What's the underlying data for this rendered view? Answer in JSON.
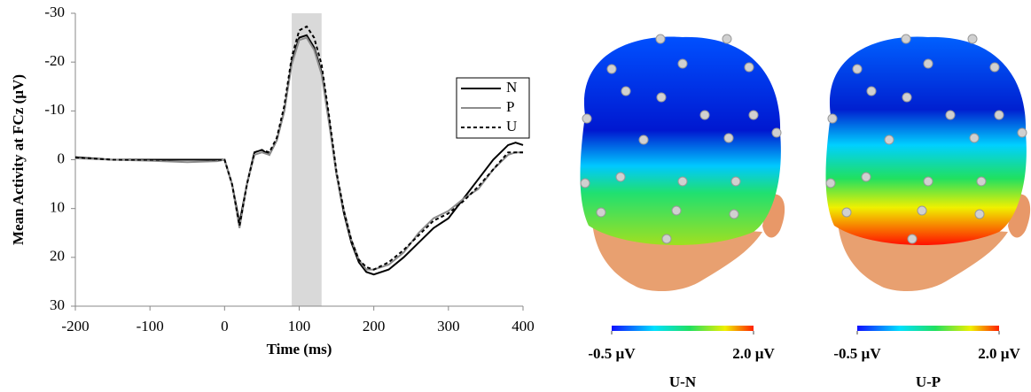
{
  "chart_data": [
    {
      "type": "line",
      "xlabel": "Time (ms)",
      "ylabel": "Mean Activity at FCz (µV)",
      "x": [
        -200,
        -150,
        -100,
        -50,
        -10,
        0,
        10,
        20,
        30,
        40,
        50,
        60,
        70,
        80,
        90,
        100,
        110,
        120,
        130,
        140,
        150,
        160,
        170,
        180,
        190,
        200,
        220,
        240,
        260,
        280,
        300,
        320,
        340,
        360,
        380,
        390,
        400
      ],
      "series": [
        {
          "name": "N",
          "color": "#000000",
          "dashed": false,
          "values": [
            -0.5,
            0,
            0,
            0,
            0,
            0,
            5,
            13,
            5,
            -1.5,
            -2,
            -1,
            -4,
            -10,
            -20,
            -25,
            -25.5,
            -23,
            -18,
            -8,
            3,
            11,
            17,
            21,
            23,
            23.5,
            22.5,
            20,
            17,
            14,
            12,
            8,
            4,
            0,
            -3,
            -3.5,
            -3
          ]
        },
        {
          "name": "P",
          "color": "#8c8c8c",
          "dashed": false,
          "values": [
            -0.3,
            0,
            0.2,
            0.5,
            0.3,
            0,
            5,
            14,
            5,
            -1,
            -1.5,
            -1,
            -4,
            -10,
            -19.5,
            -24.5,
            -25,
            -22.5,
            -17.5,
            -7.5,
            3,
            10.5,
            16.5,
            20.5,
            22.5,
            22.5,
            21.5,
            19,
            15,
            12,
            10.5,
            8,
            6,
            2,
            -1,
            -1.5,
            -1.5
          ]
        },
        {
          "name": "U",
          "color": "#000000",
          "dashed": true,
          "values": [
            -0.5,
            0,
            0,
            0,
            0,
            0,
            5,
            13.5,
            5,
            -1.5,
            -2,
            -1.5,
            -4.5,
            -11,
            -21,
            -26.5,
            -27.3,
            -25,
            -19.5,
            -9,
            2.5,
            10.5,
            16.5,
            20.5,
            22,
            22.5,
            21,
            18.5,
            15.5,
            12.5,
            11,
            8.5,
            5.5,
            2,
            -1.5,
            -1.5,
            -1.5
          ]
        }
      ],
      "xlim": [
        -200,
        400
      ],
      "xticks": [
        -200,
        -100,
        0,
        100,
        200,
        300,
        400
      ],
      "ylim": [
        -30,
        30
      ],
      "yticks": [
        -30,
        -20,
        -10,
        0,
        10,
        20,
        30
      ],
      "y_inverted": true,
      "shade": [
        90,
        130
      ],
      "legend": "upper right"
    },
    {
      "type": "topomap",
      "maps": [
        {
          "title": "U-N",
          "clim": [
            -0.5,
            2.0
          ],
          "colorbar": [
            {
              "value": -0.5,
              "label": "-0.5 µV"
            },
            {
              "value": 2.0,
              "label": "2.0 µV"
            }
          ]
        },
        {
          "title": "U-P",
          "clim": [
            -0.5,
            2.0
          ],
          "colorbar": [
            {
              "value": -0.5,
              "label": "-0.5 µV"
            },
            {
              "value": 2.0,
              "label": "2.0 µV"
            }
          ]
        }
      ]
    }
  ]
}
